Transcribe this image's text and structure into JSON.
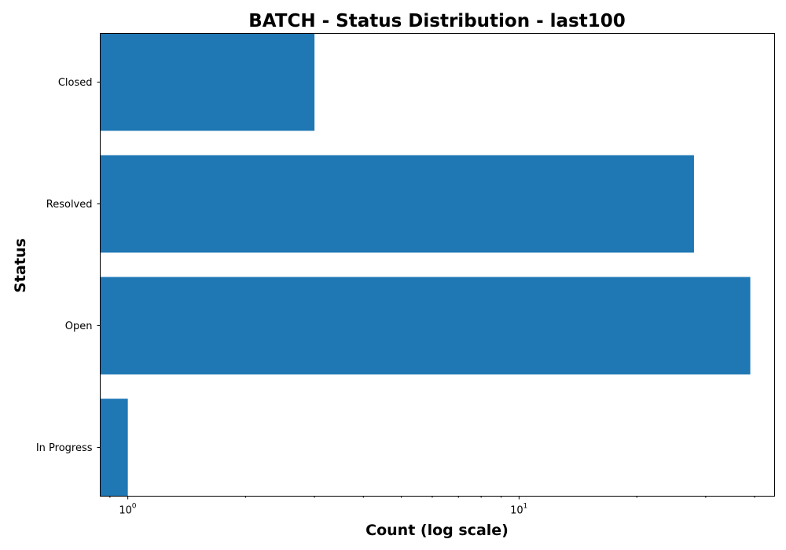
{
  "chart_data": {
    "type": "bar",
    "orientation": "horizontal",
    "title": "BATCH - Status Distribution - last100",
    "xlabel": "Count (log scale)",
    "ylabel": "Status",
    "x_scale": "log",
    "xlim": [
      0.85,
      45
    ],
    "categories": [
      "In Progress",
      "Open",
      "Resolved",
      "Closed"
    ],
    "values": [
      1,
      39,
      28,
      3
    ],
    "x_major_ticks": [
      {
        "base": "10",
        "exponent": "0",
        "value": 1
      },
      {
        "base": "10",
        "exponent": "1",
        "value": 10
      }
    ],
    "bar_color": "#1f77b4",
    "grid": false,
    "legend": "none"
  }
}
